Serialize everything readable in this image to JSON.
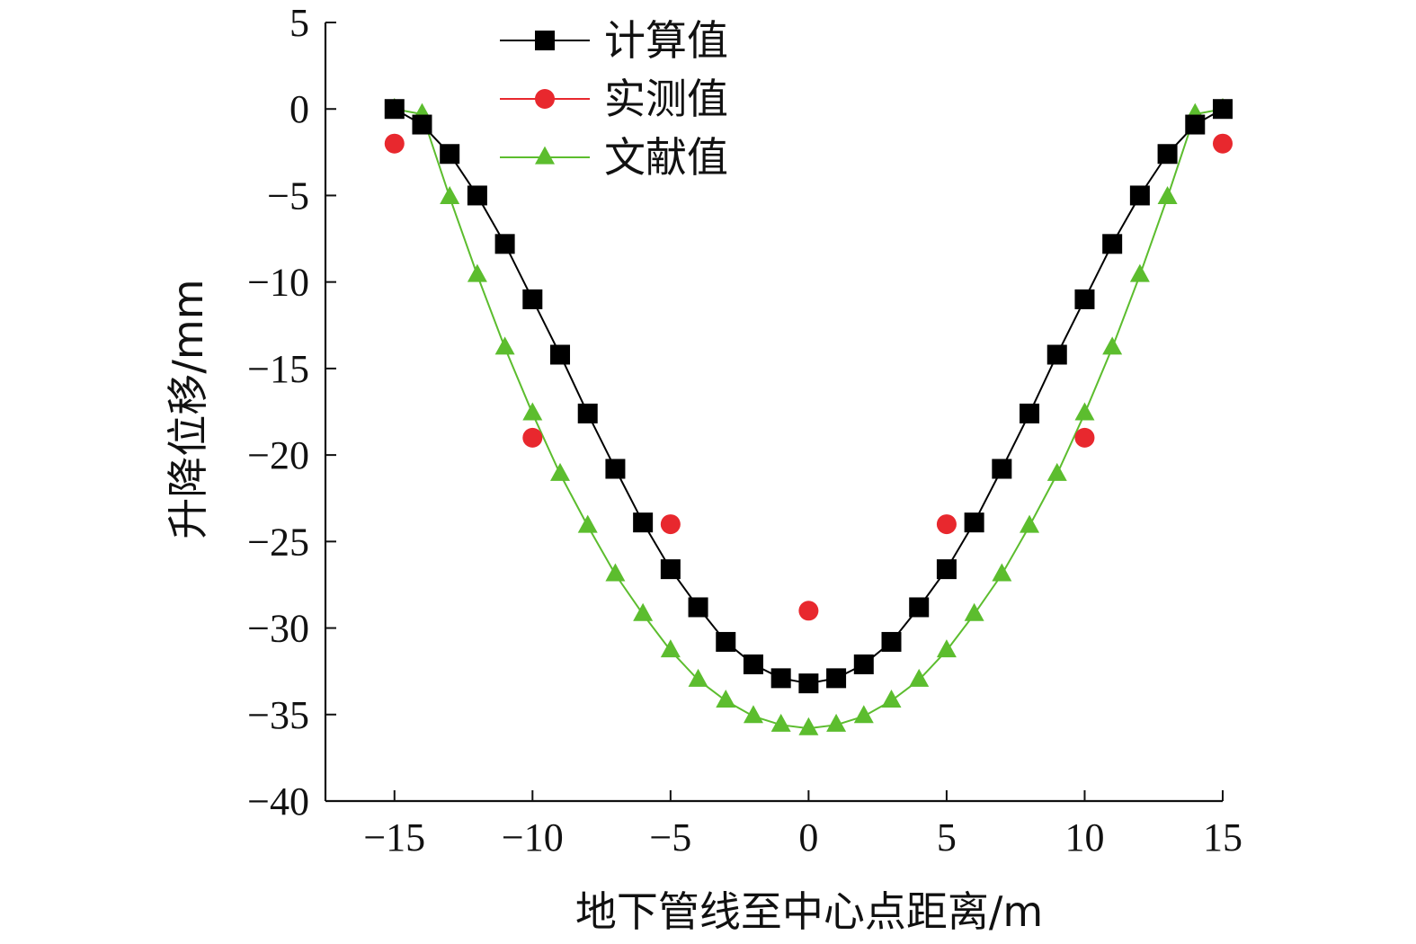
{
  "chart_data": {
    "type": "line",
    "xlabel": "地下管线至中心点距离/m",
    "ylabel": "升降位移/mm",
    "xlim": [
      -17.5,
      15
    ],
    "ylim": [
      -40,
      5
    ],
    "xticks": [
      -15,
      -10,
      -5,
      0,
      5,
      10,
      15
    ],
    "yticks": [
      5,
      0,
      -5,
      -10,
      -15,
      -20,
      -25,
      -30,
      -35,
      -40
    ],
    "xtick_labels": [
      "−15",
      "−10",
      "−5",
      "0",
      "5",
      "10",
      "15"
    ],
    "ytick_labels": [
      "5",
      "0",
      "−5",
      "−10",
      "−15",
      "−20",
      "−25",
      "−30",
      "−35",
      "−40"
    ],
    "grid": false,
    "legend_position": "top-left",
    "series": [
      {
        "name": "计算值",
        "color": "#000000",
        "marker": "square",
        "line": true,
        "x": [
          -15,
          -14,
          -13,
          -12,
          -11,
          -10,
          -9,
          -8,
          -7,
          -6,
          -5,
          -4,
          -3,
          -2,
          -1,
          0,
          1,
          2,
          3,
          4,
          5,
          6,
          7,
          8,
          9,
          10,
          11,
          12,
          13,
          14,
          15
        ],
        "y": [
          0,
          -0.9,
          -2.6,
          -5,
          -7.8,
          -11,
          -14.2,
          -17.6,
          -20.8,
          -23.9,
          -26.6,
          -28.8,
          -30.8,
          -32.1,
          -32.9,
          -33.2,
          -32.9,
          -32.1,
          -30.8,
          -28.8,
          -26.6,
          -23.9,
          -20.8,
          -17.6,
          -14.2,
          -11,
          -7.8,
          -5,
          -2.6,
          -0.9,
          0
        ]
      },
      {
        "name": "实测值",
        "color": "#e8282e",
        "marker": "circle",
        "line": false,
        "x": [
          -15,
          -10,
          -5,
          0,
          5,
          10,
          15
        ],
        "y": [
          -2,
          -19,
          -24,
          -29,
          -24,
          -19,
          -2
        ]
      },
      {
        "name": "文献值",
        "color": "#5cbd2e",
        "marker": "triangle",
        "line": true,
        "x": [
          -15,
          -14,
          -13,
          -12,
          -11,
          -10,
          -9,
          -8,
          -7,
          -6,
          -5,
          -4,
          -3,
          -2,
          -1,
          0,
          1,
          2,
          3,
          4,
          5,
          6,
          7,
          8,
          9,
          10,
          11,
          12,
          13,
          14,
          15
        ],
        "y": [
          0,
          -0.3,
          -5.1,
          -9.6,
          -13.8,
          -17.6,
          -21.1,
          -24.1,
          -26.9,
          -29.2,
          -31.3,
          -33,
          -34.2,
          -35.1,
          -35.6,
          -35.8,
          -35.6,
          -35.1,
          -34.2,
          -33,
          -31.3,
          -29.2,
          -26.9,
          -24.1,
          -21.1,
          -17.6,
          -13.8,
          -9.6,
          -5.1,
          -0.3,
          0
        ]
      }
    ]
  }
}
